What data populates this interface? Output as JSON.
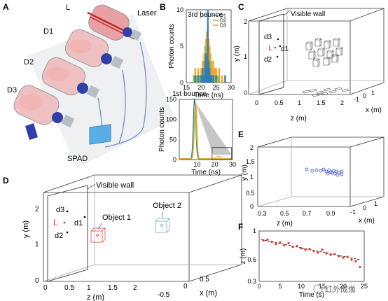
{
  "panels": {
    "A": {
      "letter": "A",
      "labels": {
        "L": "L",
        "laser": "Laser",
        "d1": "D1",
        "d2": "D2",
        "d3": "D3",
        "spad": "SPAD"
      }
    },
    "B": {
      "letter": "B"
    },
    "C": {
      "letter": "C",
      "visible_wall": "Visible wall",
      "d3": "d3",
      "L": "L",
      "d1": "d1",
      "d2": "d2",
      "ylabel": "y (m)",
      "zlabel": "z (m)",
      "xlabel": "x (m)",
      "y_ticks": [
        "0",
        "1",
        "2"
      ],
      "z_ticks": [
        "0",
        "0.5",
        "1",
        "1.5",
        "2"
      ],
      "x_ticks": [
        "-1",
        "0",
        "1"
      ]
    },
    "D": {
      "letter": "D",
      "visible_wall": "Visible wall",
      "object1": "Object 1",
      "object2": "Object 2",
      "d3": "d3",
      "L": "L",
      "d1": "d1",
      "d2": "d2",
      "ylabel": "y (m)",
      "zlabel": "z (m)",
      "xlabel": "x (m)",
      "y_ticks": [
        "0",
        "1",
        "2"
      ],
      "z_ticks": [
        "0",
        "0.5",
        "1",
        "1.5",
        "2"
      ],
      "x_ticks": [
        "-0.5",
        "0",
        "0.5"
      ]
    },
    "E": {
      "letter": "E",
      "ylabel": "y (m)",
      "zlabel": "z (m)",
      "xlabel": "x (m)",
      "y_ticks": [
        "0",
        "0.5",
        "1",
        "1.5",
        "2"
      ],
      "z_ticks": [
        "0.3",
        "0.5",
        "0.7",
        "0.9"
      ],
      "x_ticks": [
        "-1",
        "0",
        "1"
      ]
    },
    "F": {
      "letter": "F"
    }
  },
  "watermark": "红外成像",
  "colors": {
    "d1": "#2b7bb9",
    "d2": "#7fc34a",
    "d3": "#f0a020",
    "red": "#e8302a",
    "blue_obj": "#3048c8",
    "cyan_obj": "#5aa8c0"
  },
  "chart_data": [
    {
      "panel": "B-top",
      "type": "bar",
      "title": "3rd bounce",
      "xlabel": "Time (ns)",
      "ylabel": "Photon counts",
      "xlim": [
        15,
        30
      ],
      "ylim": [
        0,
        10
      ],
      "x_ticks": [
        15,
        20,
        25,
        30
      ],
      "y_ticks": [
        0,
        5,
        10
      ],
      "x": [
        17.5,
        18,
        18.5,
        19,
        19.5,
        20,
        20.5,
        21,
        21.3,
        21.6,
        21.9,
        22.2,
        22.5,
        22.8,
        23.1,
        23.4,
        23.7,
        24,
        24.5,
        25,
        25.5,
        26,
        27,
        28
      ],
      "series": [
        {
          "name": "D1",
          "values": [
            0,
            1,
            0,
            1,
            0,
            1,
            2,
            1,
            3,
            4,
            2,
            10,
            3,
            2,
            1,
            1,
            0,
            1,
            0,
            1,
            0,
            0,
            0,
            1
          ]
        },
        {
          "name": "D2",
          "values": [
            1,
            0,
            1,
            0,
            1,
            0,
            1,
            2,
            1,
            5,
            2,
            3,
            2,
            3,
            1,
            0,
            1,
            0,
            1,
            0,
            0,
            1,
            0,
            0
          ]
        },
        {
          "name": "D3",
          "values": [
            1,
            2,
            1,
            2,
            1,
            2,
            3,
            4,
            5,
            6,
            7,
            8,
            6,
            5,
            4,
            3,
            2,
            3,
            2,
            2,
            1,
            2,
            1,
            1
          ]
        }
      ]
    },
    {
      "panel": "B-bottom",
      "type": "line",
      "title": "1st bounce",
      "xlabel": "Time (ns)",
      "ylabel": "Photon counts",
      "xlim": [
        0,
        30
      ],
      "ylim": [
        0,
        150
      ],
      "x_ticks": [
        10,
        20,
        30
      ],
      "y_ticks": [
        0,
        50,
        100,
        150
      ],
      "series": [
        {
          "name": "D1",
          "peak_x": 8.6,
          "peak_y": 150
        },
        {
          "name": "D2",
          "peak_x": 8.9,
          "peak_y": 120
        },
        {
          "name": "D3",
          "peak_x": 9.2,
          "peak_y": 140
        }
      ]
    },
    {
      "panel": "F",
      "type": "scatter",
      "xlabel": "Time (s)",
      "ylabel": "z (m)",
      "xlim": [
        0,
        25
      ],
      "ylim": [
        0.3,
        1
      ],
      "x_ticks": [
        0,
        5,
        10,
        15,
        20,
        25
      ],
      "y_ticks": [
        0.3,
        0.6,
        1
      ],
      "points": [
        [
          1,
          0.87
        ],
        [
          2,
          0.88
        ],
        [
          3,
          0.85
        ],
        [
          4,
          0.82
        ],
        [
          5,
          0.84
        ],
        [
          6,
          0.8
        ],
        [
          7,
          0.83
        ],
        [
          8,
          0.78
        ],
        [
          9,
          0.79
        ],
        [
          10,
          0.76
        ],
        [
          11,
          0.74
        ],
        [
          12,
          0.75
        ],
        [
          13,
          0.72
        ],
        [
          14,
          0.7
        ],
        [
          15,
          0.74
        ],
        [
          16,
          0.69
        ],
        [
          17,
          0.67
        ],
        [
          18,
          0.68
        ],
        [
          19,
          0.65
        ],
        [
          20,
          0.63
        ],
        [
          21,
          0.64
        ],
        [
          22,
          0.6
        ],
        [
          23,
          0.58
        ],
        [
          24,
          0.5
        ]
      ],
      "fit": [
        [
          0.5,
          0.88
        ],
        [
          24,
          0.6
        ]
      ]
    }
  ]
}
